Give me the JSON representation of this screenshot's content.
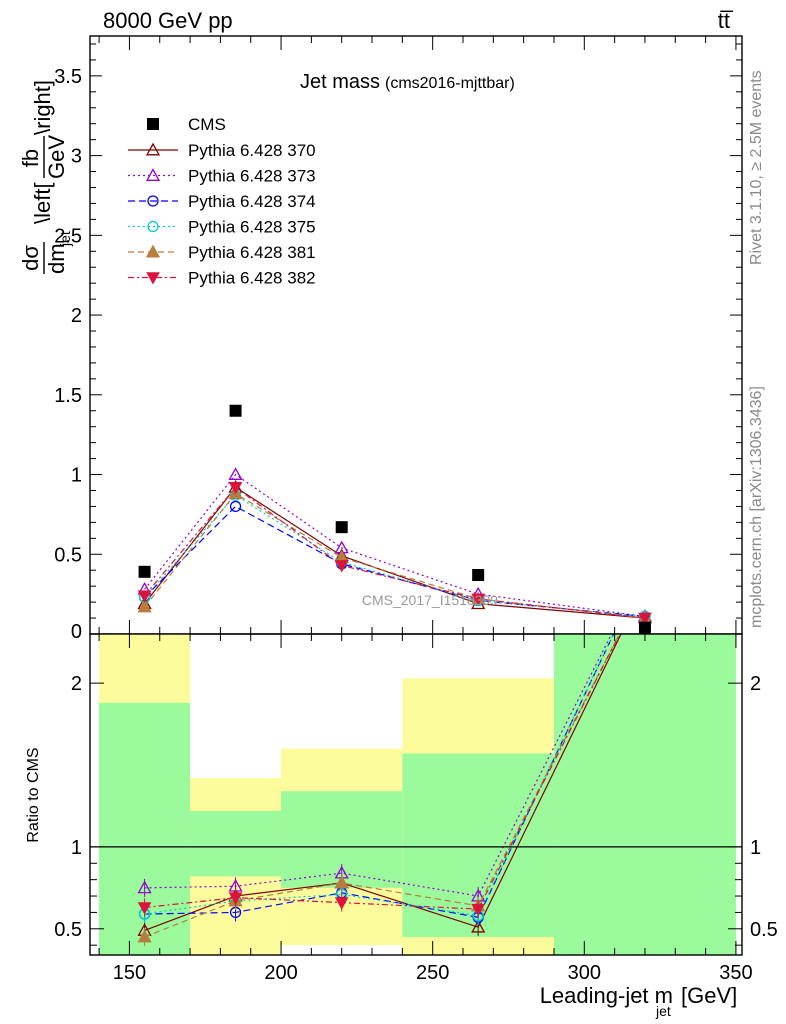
{
  "header": {
    "left": "8000 GeV pp",
    "right": "tt̅"
  },
  "side_texts": {
    "rivet": "Rivet 3.1.10, ≥ 2.5M events",
    "mcplots": "mcplots.cern.ch [arXiv:1306.3436]"
  },
  "watermark": "CMS_2017_I1518399",
  "chart_data": [
    {
      "type": "line",
      "title": "Jet mass",
      "title_suffix": "(cms2016-mjttbar)",
      "ylabel": "dσ/dm_jet \\left[fb/GeV\\right]",
      "ylabel_parts": {
        "numer": "dσ",
        "denom": "dm",
        "denom_sub": "jet",
        "left": "\\left[",
        "fb": "fb",
        "gev": "GeV",
        "right": "\\right]"
      },
      "xlim": [
        137,
        352
      ],
      "ylim": [
        0,
        3.75
      ],
      "yticks": [
        0.5,
        1,
        1.5,
        2,
        2.5,
        3,
        3.5
      ],
      "ytick_labels": [
        "0.5",
        "1",
        "1.5",
        "2",
        "2.5",
        "3",
        "3.5"
      ],
      "ytick_bottom_label": "0",
      "x": [
        155,
        185,
        220,
        265,
        320
      ],
      "data": {
        "name": "CMS",
        "values": [
          0.39,
          1.4,
          0.67,
          0.37,
          0.04
        ]
      },
      "series": [
        {
          "name": "Pythia 6.428 370",
          "values": [
            0.19,
            0.92,
            0.49,
            0.19,
            0.1
          ]
        },
        {
          "name": "Pythia 6.428 373",
          "values": [
            0.28,
            1.0,
            0.54,
            0.25,
            0.11
          ]
        },
        {
          "name": "Pythia 6.428 374",
          "values": [
            0.23,
            0.8,
            0.44,
            0.21,
            0.11
          ]
        },
        {
          "name": "Pythia 6.428 375",
          "values": [
            0.23,
            0.87,
            0.45,
            0.21,
            0.11
          ]
        },
        {
          "name": "Pythia 6.428 381",
          "values": [
            0.17,
            0.88,
            0.48,
            0.22,
            0.1
          ]
        },
        {
          "name": "Pythia 6.428 382",
          "values": [
            0.24,
            0.92,
            0.43,
            0.22,
            0.1
          ]
        }
      ],
      "legend": "top-left"
    },
    {
      "type": "line",
      "ylabel": "Ratio to CMS",
      "xlabel": "Leading-jet m",
      "xlabel_sub": "jet",
      "xlabel_unit": "[GeV]",
      "xlim": [
        137,
        352
      ],
      "ylim": [
        0.34,
        2.3
      ],
      "xticks": [
        150,
        200,
        250,
        300,
        350
      ],
      "xtick_labels": [
        "150",
        "200",
        "250",
        "300",
        "350"
      ],
      "yticks": [
        0.5,
        1,
        2
      ],
      "ytick_labels": [
        "0.5",
        "1",
        "2"
      ],
      "bands": [
        {
          "x": [
            140,
            170
          ],
          "inner": [
            0.34,
            1.88
          ],
          "outer": [
            0.34,
            2.3
          ]
        },
        {
          "x": [
            170,
            200
          ],
          "inner": [
            0.82,
            1.22
          ],
          "outer": [
            0.34,
            1.42
          ]
        },
        {
          "x": [
            200,
            240
          ],
          "inner": [
            0.75,
            1.34
          ],
          "outer": [
            0.4,
            1.6
          ]
        },
        {
          "x": [
            240,
            290
          ],
          "inner": [
            0.45,
            1.57
          ],
          "outer": [
            0.34,
            2.03
          ]
        },
        {
          "x": [
            290,
            350
          ],
          "inner": [
            0.34,
            2.3
          ],
          "outer": [
            0.34,
            2.3
          ]
        }
      ],
      "x": [
        155,
        185,
        220,
        265,
        320
      ],
      "series": [
        {
          "name": "Pythia 6.428 370",
          "values": [
            0.49,
            0.7,
            0.78,
            0.51,
            2.6
          ]
        },
        {
          "name": "Pythia 6.428 373",
          "values": [
            0.75,
            0.76,
            0.84,
            0.7,
            2.7
          ]
        },
        {
          "name": "Pythia 6.428 374",
          "values": [
            0.59,
            0.6,
            0.72,
            0.57,
            2.7
          ]
        },
        {
          "name": "Pythia 6.428 375",
          "values": [
            0.59,
            0.67,
            0.71,
            0.58,
            2.7
          ]
        },
        {
          "name": "Pythia 6.428 381",
          "values": [
            0.45,
            0.67,
            0.78,
            0.64,
            2.6
          ]
        },
        {
          "name": "Pythia 6.428 382",
          "values": [
            0.63,
            0.69,
            0.66,
            0.62,
            2.6
          ]
        }
      ]
    }
  ],
  "styles": {
    "band_inner": "#9bfa9b",
    "band_outer": "#fcfc9c",
    "series_colors": [
      "#800000",
      "#9400d3",
      "#0000ff",
      "#00ced1",
      "#b87c3c",
      "#dc143c"
    ],
    "series_markers": [
      "triangle-open",
      "triangle-open",
      "circle-open",
      "circle-open",
      "triangle-filled",
      "triangle-down-filled"
    ],
    "series_dash": [
      "",
      "2,3",
      "7,4",
      "2,3",
      "6,4",
      "6,3,2,3"
    ]
  }
}
